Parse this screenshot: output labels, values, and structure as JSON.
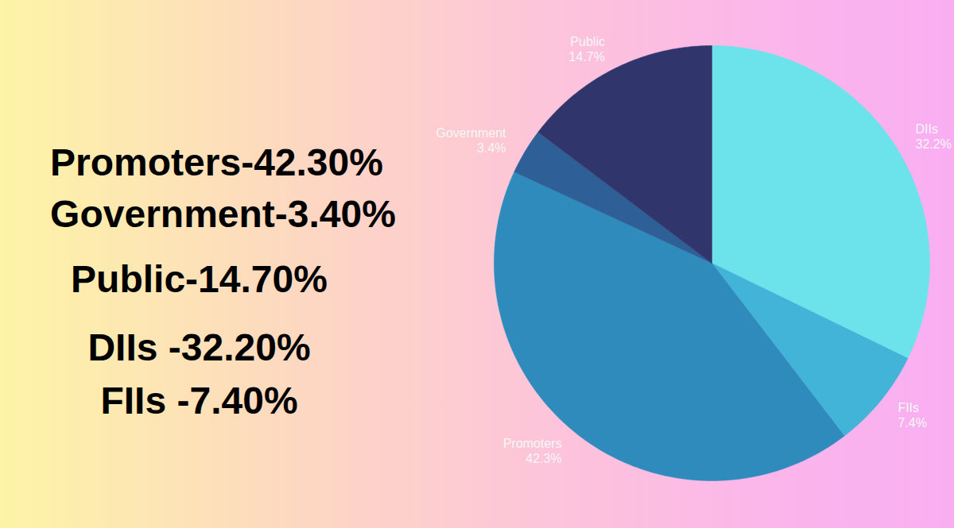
{
  "chart_data": {
    "type": "pie",
    "categories": [
      "DIIs",
      "FIIs",
      "Promoters",
      "Government",
      "Public"
    ],
    "values": [
      32.2,
      7.4,
      42.3,
      3.4,
      14.7
    ],
    "value_labels": [
      "32.2%",
      "7.4%",
      "42.3%",
      "3.4%",
      "14.7%"
    ],
    "colors": [
      "#6ce3ea",
      "#42b4d7",
      "#2e8bbb",
      "#2e5f96",
      "#30356b"
    ],
    "data_labels": true,
    "annotations": [
      "Promoters-42.30%",
      "Government-3.40%",
      "Public-14.70%",
      "DIIs -32.20%",
      "FIIs -7.40%"
    ]
  }
}
